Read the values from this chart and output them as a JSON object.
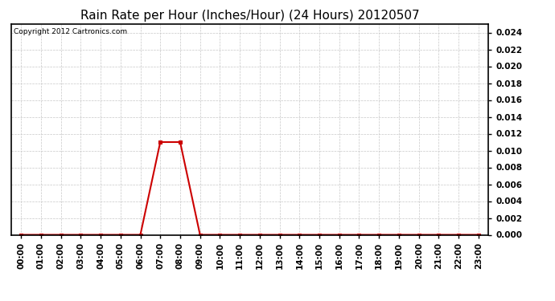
{
  "title": "Rain Rate per Hour (Inches/Hour) (24 Hours) 20120507",
  "copyright_text": "Copyright 2012 Cartronics.com",
  "background_color": "#ffffff",
  "plot_bg_color": "#ffffff",
  "grid_color": "#c8c8c8",
  "line_color": "#cc0000",
  "marker_color": "#cc0000",
  "hours": [
    0,
    1,
    2,
    3,
    4,
    5,
    6,
    7,
    8,
    9,
    10,
    11,
    12,
    13,
    14,
    15,
    16,
    17,
    18,
    19,
    20,
    21,
    22,
    23
  ],
  "values": [
    0.0,
    0.0,
    0.0,
    0.0,
    0.0,
    0.0,
    0.0,
    0.011,
    0.011,
    0.0,
    0.0,
    0.0,
    0.0,
    0.0,
    0.0,
    0.0,
    0.0,
    0.0,
    0.0,
    0.0,
    0.0,
    0.0,
    0.0,
    0.0
  ],
  "ylim": [
    0.0,
    0.025
  ],
  "yticks": [
    0.0,
    0.002,
    0.004,
    0.006,
    0.008,
    0.01,
    0.012,
    0.014,
    0.016,
    0.018,
    0.02,
    0.022,
    0.024
  ],
  "xtick_labels": [
    "00:00",
    "01:00",
    "02:00",
    "03:00",
    "04:00",
    "05:00",
    "06:00",
    "07:00",
    "08:00",
    "09:00",
    "10:00",
    "11:00",
    "12:00",
    "13:00",
    "14:00",
    "15:00",
    "16:00",
    "17:00",
    "18:00",
    "19:00",
    "20:00",
    "21:00",
    "22:00",
    "23:00"
  ],
  "title_fontsize": 11,
  "copyright_fontsize": 6.5,
  "tick_fontsize": 7.5,
  "ytick_fontweight": "bold"
}
